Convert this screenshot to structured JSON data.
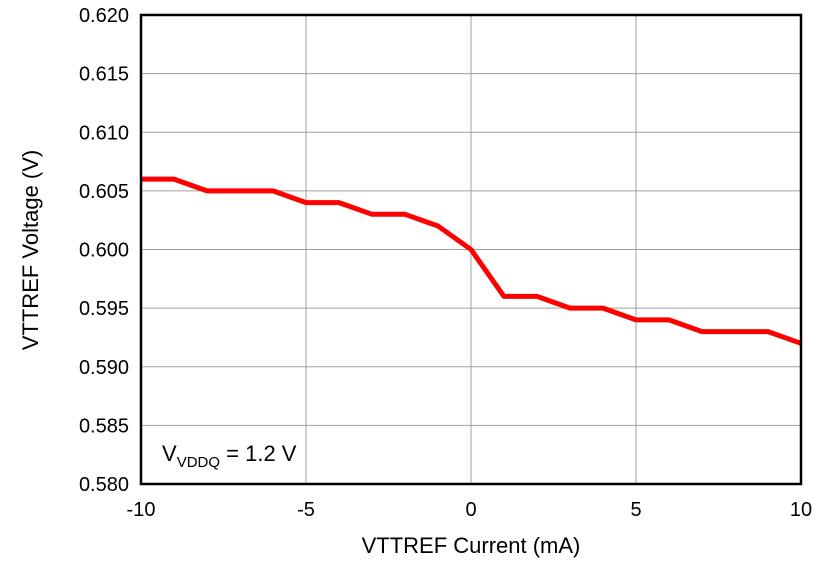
{
  "chart_data": {
    "type": "line",
    "xlabel": "VTTREF Current (mA)",
    "ylabel": "VTTREF Voltage (V)",
    "xlim": [
      -10,
      10
    ],
    "ylim": [
      0.58,
      0.62
    ],
    "xticks": [
      -10,
      -5,
      0,
      5,
      10
    ],
    "xtick_labels": [
      "-10",
      "-5",
      "0",
      "5",
      "10"
    ],
    "yticks": [
      0.58,
      0.585,
      0.59,
      0.595,
      0.6,
      0.605,
      0.61,
      0.615,
      0.62
    ],
    "ytick_labels": [
      "0.580",
      "0.585",
      "0.590",
      "0.595",
      "0.600",
      "0.605",
      "0.610",
      "0.615",
      "0.620"
    ],
    "grid": true,
    "series": [
      {
        "color": "#ff0000",
        "x": [
          -10,
          -9,
          -8,
          -7,
          -6,
          -5,
          -4,
          -3,
          -2,
          -1,
          0,
          1,
          2,
          3,
          4,
          5,
          6,
          7,
          8,
          9,
          10
        ],
        "y": [
          0.606,
          0.606,
          0.605,
          0.605,
          0.605,
          0.604,
          0.604,
          0.603,
          0.603,
          0.602,
          0.6,
          0.596,
          0.596,
          0.595,
          0.595,
          0.594,
          0.594,
          0.593,
          0.593,
          0.593,
          0.592
        ]
      }
    ],
    "annotation": {
      "main": "V",
      "sub": "VDDQ",
      "rest": " = 1.2 V"
    }
  }
}
